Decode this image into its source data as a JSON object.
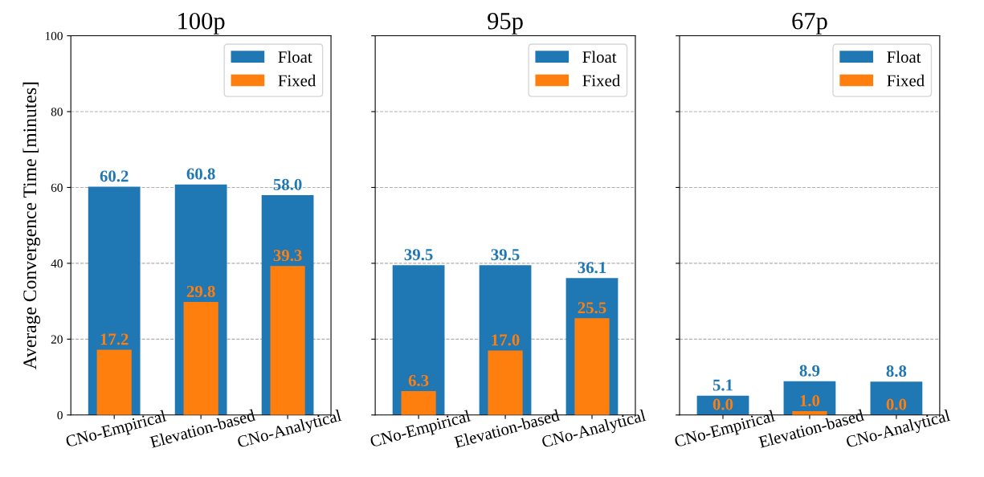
{
  "chart_data": [
    {
      "type": "bar",
      "title": "100p",
      "ylabel": "Average Convergence Time [minutes]",
      "categories": [
        "CNo-Empirical",
        "Elevation-based",
        "CNo-Analytical"
      ],
      "series": [
        {
          "name": "Float",
          "color": "#1f77b4",
          "values": [
            60.2,
            60.8,
            58.0
          ],
          "value_labels": [
            "60.2",
            "60.8",
            "58.0"
          ]
        },
        {
          "name": "Fixed",
          "color": "#ff7f0e",
          "values": [
            17.2,
            29.8,
            39.3
          ],
          "value_labels": [
            "17.2",
            "29.8",
            "39.3"
          ]
        }
      ],
      "ylim": [
        0,
        100
      ],
      "yticks": [
        0,
        20,
        40,
        60,
        80,
        100
      ],
      "grid": "y",
      "legend": "top right",
      "data_labels": true
    },
    {
      "type": "bar",
      "title": "95p",
      "categories": [
        "CNo-Empirical",
        "Elevation-based",
        "CNo-Analytical"
      ],
      "series": [
        {
          "name": "Float",
          "color": "#1f77b4",
          "values": [
            39.5,
            39.5,
            36.1
          ],
          "value_labels": [
            "39.5",
            "39.5",
            "36.1"
          ]
        },
        {
          "name": "Fixed",
          "color": "#ff7f0e",
          "values": [
            6.3,
            17.0,
            25.5
          ],
          "value_labels": [
            "6.3",
            "17.0",
            "25.5"
          ]
        }
      ],
      "ylim": [
        0,
        100
      ],
      "yticks": [
        0,
        20,
        40,
        60,
        80,
        100
      ],
      "grid": "y",
      "legend": "top right",
      "data_labels": true,
      "tick_labels": "x"
    },
    {
      "type": "bar",
      "title": "67p",
      "categories": [
        "CNo-Empirical",
        "Elevation-based",
        "CNo-Analytical"
      ],
      "series": [
        {
          "name": "Float",
          "color": "#1f77b4",
          "values": [
            5.1,
            8.9,
            8.8
          ],
          "value_labels": [
            "5.1",
            "8.9",
            "8.8"
          ]
        },
        {
          "name": "Fixed",
          "color": "#ff7f0e",
          "values": [
            0.0,
            1.0,
            0.0
          ],
          "value_labels": [
            "0.0",
            "1.0",
            "0.0"
          ]
        }
      ],
      "ylim": [
        0,
        100
      ],
      "yticks": [
        0,
        20,
        40,
        60,
        80,
        100
      ],
      "grid": "y",
      "legend": "top right",
      "data_labels": true,
      "tick_labels": "x"
    }
  ]
}
